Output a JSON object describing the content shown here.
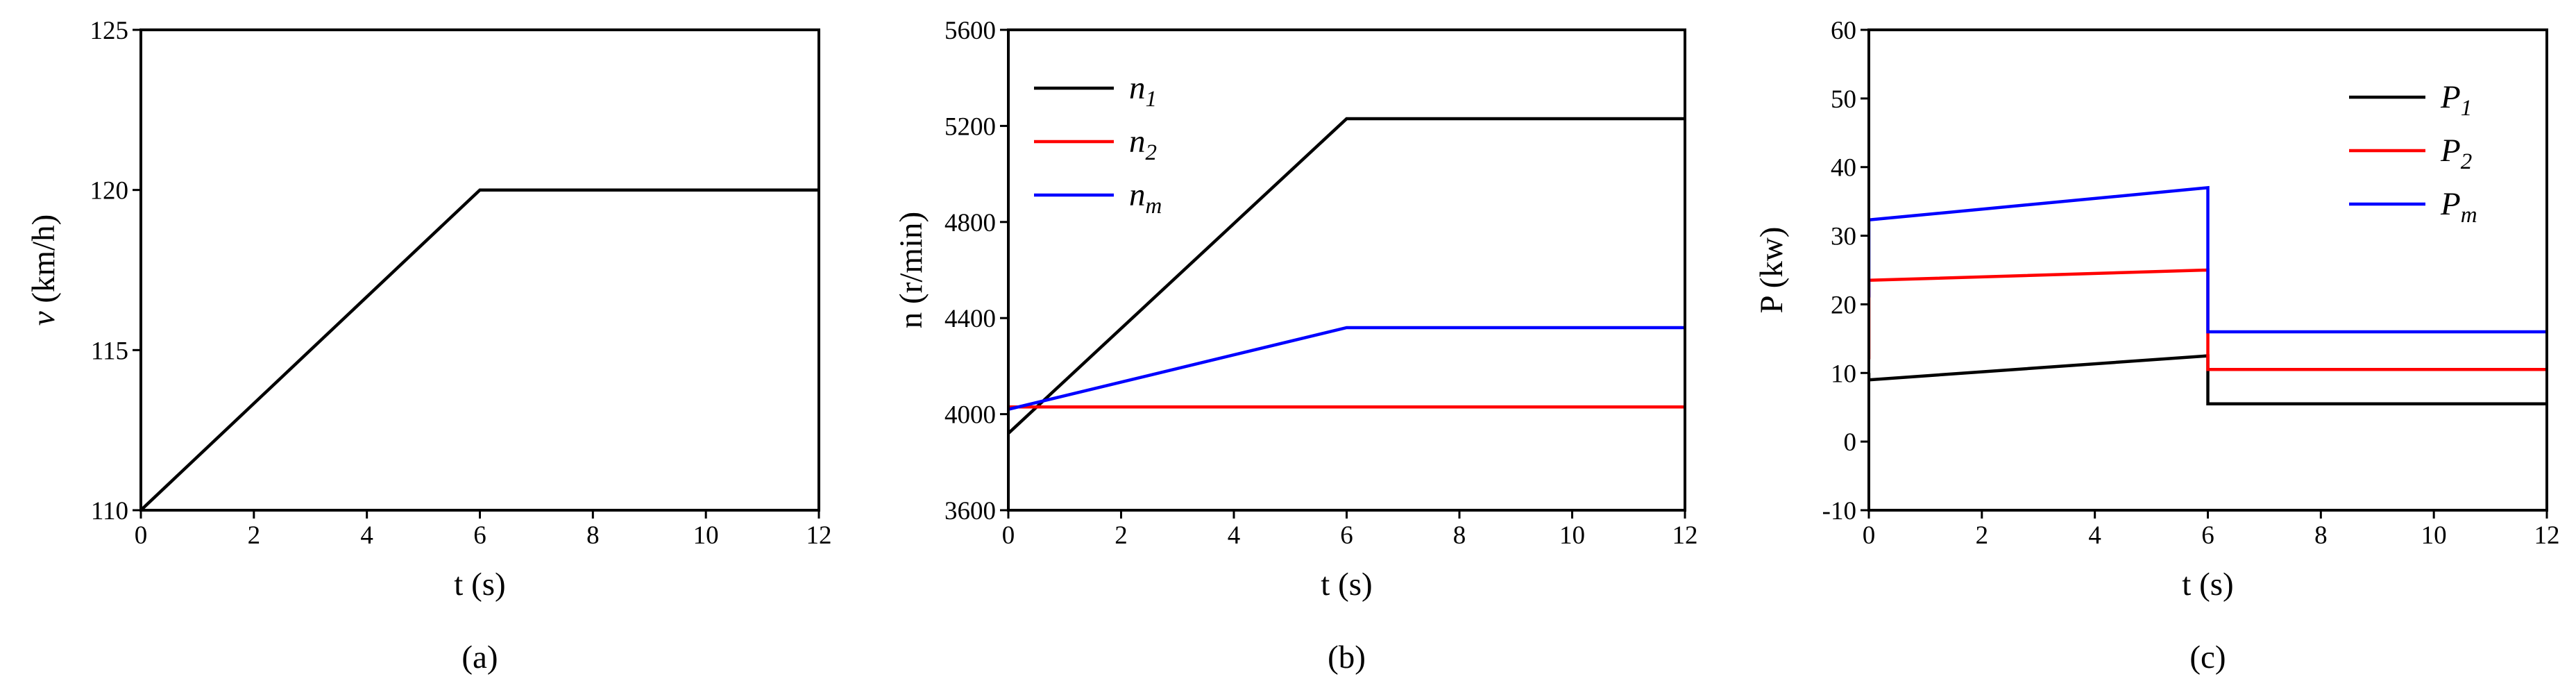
{
  "chart_data": [
    {
      "type": "line",
      "xlabel": "t (s)",
      "ylabel_italic": "v",
      "ylabel_rest": " (km/h)",
      "caption": "(a)",
      "xlim": [
        0,
        12
      ],
      "ylim": [
        110,
        125
      ],
      "xticks": [
        0,
        2,
        4,
        6,
        8,
        10,
        12
      ],
      "yticks": [
        110,
        115,
        120,
        125
      ],
      "grid": false,
      "legend_position": "",
      "series": [
        {
          "color": "#000000",
          "x": [
            0,
            6,
            12
          ],
          "y": [
            110,
            120,
            120
          ]
        }
      ]
    },
    {
      "type": "line",
      "xlabel": "t (s)",
      "ylabel_italic": "",
      "ylabel_rest": "n (r/min)",
      "caption": "(b)",
      "xlim": [
        0,
        12
      ],
      "ylim": [
        3600,
        5600
      ],
      "xticks": [
        0,
        2,
        4,
        6,
        8,
        10,
        12
      ],
      "yticks": [
        3600,
        4000,
        4400,
        4800,
        5200,
        5600
      ],
      "grid": false,
      "legend_position": "top-left",
      "series": [
        {
          "name": "n",
          "sub": "1",
          "color": "#000000",
          "x": [
            0,
            6,
            12
          ],
          "y": [
            3920,
            5230,
            5230
          ]
        },
        {
          "name": "n",
          "sub": "2",
          "color": "#ff0000",
          "x": [
            0,
            12
          ],
          "y": [
            4030,
            4030
          ]
        },
        {
          "name": "n",
          "sub": "m",
          "color": "#0000ff",
          "x": [
            0,
            6,
            12
          ],
          "y": [
            4020,
            4360,
            4360
          ]
        }
      ]
    },
    {
      "type": "line",
      "xlabel": "t (s)",
      "ylabel_italic": "",
      "ylabel_rest": "P (kw)",
      "caption": "(c)",
      "xlim": [
        0,
        12
      ],
      "ylim": [
        -10,
        60
      ],
      "xticks": [
        0,
        2,
        4,
        6,
        8,
        10,
        12
      ],
      "yticks": [
        -10,
        0,
        10,
        20,
        30,
        40,
        50,
        60
      ],
      "grid": false,
      "legend_position": "top-right",
      "series": [
        {
          "name": "P",
          "sub": "1",
          "color": "#000000",
          "x": [
            0,
            0,
            6,
            6,
            12
          ],
          "y": [
            10,
            9,
            12.5,
            5.5,
            5.5
          ]
        },
        {
          "name": "P",
          "sub": "2",
          "color": "#ff0000",
          "x": [
            0,
            0,
            6,
            6,
            12
          ],
          "y": [
            12,
            23.5,
            25,
            10.5,
            10.5
          ]
        },
        {
          "name": "P",
          "sub": "m",
          "color": "#0000ff",
          "x": [
            0,
            0,
            6,
            6,
            12
          ],
          "y": [
            21,
            32.3,
            37,
            16,
            16
          ]
        }
      ]
    }
  ]
}
